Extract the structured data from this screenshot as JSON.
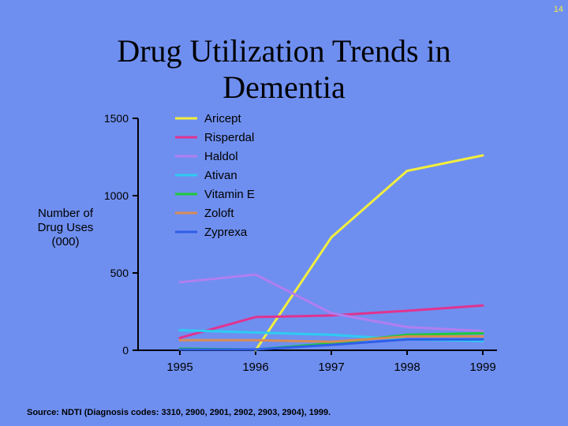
{
  "slide_number": "14",
  "chart_data": {
    "type": "line",
    "title": "Drug Utilization Trends in Dementia",
    "xlabel": "",
    "ylabel": "Number of Drug Uses (000)",
    "categories": [
      "1995",
      "1996",
      "1997",
      "1998",
      "1999"
    ],
    "ylim": [
      0,
      1500
    ],
    "yticks": [
      "0",
      "500",
      "1000",
      "1500"
    ],
    "legend_position": "top-center",
    "series": [
      {
        "name": "Aricept",
        "color": "#f2ee3e",
        "values": [
          null,
          0,
          730,
          1160,
          1260
        ]
      },
      {
        "name": "Risperdal",
        "color": "#e0338f",
        "values": [
          80,
          215,
          225,
          255,
          290
        ]
      },
      {
        "name": "Haldol",
        "color": "#b07ef0",
        "values": [
          440,
          490,
          240,
          150,
          125
        ]
      },
      {
        "name": "Ativan",
        "color": "#2ecbf0",
        "values": [
          130,
          115,
          100,
          70,
          60
        ]
      },
      {
        "name": "Vitamin E",
        "color": "#1fc93a",
        "values": [
          10,
          5,
          45,
          100,
          110
        ]
      },
      {
        "name": "Zoloft",
        "color": "#d88b56",
        "values": [
          65,
          65,
          55,
          90,
          90
        ]
      },
      {
        "name": "Zyprexa",
        "color": "#2f5ee8",
        "values": [
          5,
          5,
          35,
          70,
          70
        ]
      }
    ],
    "source": "Source: NDTI (Diagnosis codes: 3310, 2900, 2901, 2902, 2903, 2904), 1999."
  }
}
